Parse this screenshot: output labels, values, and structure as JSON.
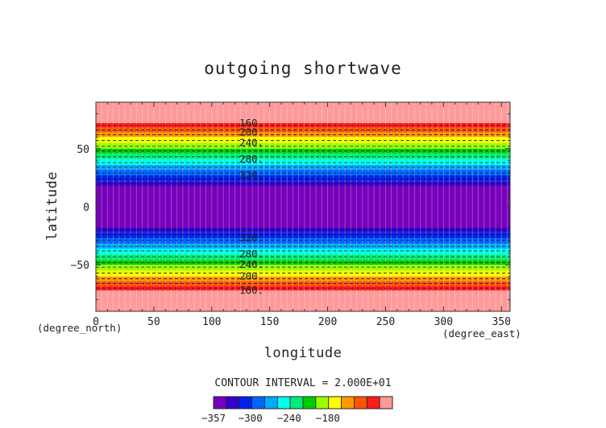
{
  "chart_data": {
    "type": "heatmap",
    "title": "outgoing shortwave",
    "xlabel": "longitude",
    "ylabel": "latitude",
    "x_unit": "(degree_east)",
    "y_unit": "(degree_north)",
    "xlim": [
      0,
      357.5
    ],
    "ylim": [
      -90,
      90
    ],
    "xticks": [
      0,
      50,
      100,
      150,
      200,
      250,
      300,
      350
    ],
    "yticks": [
      -50,
      0,
      50
    ],
    "xtick_labels": [
      "0",
      "50",
      "100",
      "150",
      "200",
      "250",
      "300",
      "350"
    ],
    "ytick_labels": [
      "−50",
      "0",
      "50"
    ],
    "contour_interval_text": "CONTOUR INTERVAL = 2.000E+01",
    "bands": [
      {
        "lat0": 72,
        "lat1": 90,
        "color": "#ff9a9a"
      },
      {
        "lat0": 68,
        "lat1": 72,
        "color": "#ff1a1a"
      },
      {
        "lat0": 64,
        "lat1": 68,
        "color": "#ff5500"
      },
      {
        "lat0": 60,
        "lat1": 64,
        "color": "#ff9900"
      },
      {
        "lat0": 55,
        "lat1": 60,
        "color": "#ffff00"
      },
      {
        "lat0": 50,
        "lat1": 55,
        "color": "#99ff00"
      },
      {
        "lat0": 46,
        "lat1": 50,
        "color": "#00cc00"
      },
      {
        "lat0": 41,
        "lat1": 46,
        "color": "#00ee77"
      },
      {
        "lat0": 36,
        "lat1": 41,
        "color": "#00ffee"
      },
      {
        "lat0": 32,
        "lat1": 36,
        "color": "#00aaff"
      },
      {
        "lat0": 27,
        "lat1": 32,
        "color": "#0066ff"
      },
      {
        "lat0": 22,
        "lat1": 27,
        "color": "#0022ee"
      },
      {
        "lat0": 18,
        "lat1": 22,
        "color": "#3300cc"
      },
      {
        "lat0": -18,
        "lat1": 18,
        "color": "#7700bb"
      },
      {
        "lat0": -22,
        "lat1": -18,
        "color": "#3300cc"
      },
      {
        "lat0": -27,
        "lat1": -22,
        "color": "#0022ee"
      },
      {
        "lat0": -32,
        "lat1": -27,
        "color": "#0066ff"
      },
      {
        "lat0": -36,
        "lat1": -32,
        "color": "#00aaff"
      },
      {
        "lat0": -41,
        "lat1": -36,
        "color": "#00ffee"
      },
      {
        "lat0": -46,
        "lat1": -41,
        "color": "#00ee77"
      },
      {
        "lat0": -50,
        "lat1": -46,
        "color": "#00cc00"
      },
      {
        "lat0": -55,
        "lat1": -50,
        "color": "#99ff00"
      },
      {
        "lat0": -60,
        "lat1": -55,
        "color": "#ffff00"
      },
      {
        "lat0": -64,
        "lat1": -60,
        "color": "#ff9900"
      },
      {
        "lat0": -68,
        "lat1": -64,
        "color": "#ff5500"
      },
      {
        "lat0": -72,
        "lat1": -68,
        "color": "#ff1a1a"
      },
      {
        "lat0": -90,
        "lat1": -72,
        "color": "#ff9a9a"
      }
    ],
    "contour_labels": [
      {
        "text": "160.",
        "lat": 72
      },
      {
        "text": "200.",
        "lat": 64
      },
      {
        "text": "240.",
        "lat": 55
      },
      {
        "text": "280.",
        "lat": 41
      },
      {
        "text": "320.",
        "lat": 27
      },
      {
        "text": "320.",
        "lat": -27
      },
      {
        "text": "280.",
        "lat": -41
      },
      {
        "text": "240.",
        "lat": -50
      },
      {
        "text": "200.",
        "lat": -60
      },
      {
        "text": "160.",
        "lat": -72
      }
    ],
    "dashed_lats": [
      70,
      66,
      62,
      57,
      52,
      48,
      43,
      38,
      34,
      29,
      24,
      20,
      -20,
      -24,
      -29,
      -34,
      -38,
      -43,
      -48,
      -52,
      -57,
      -62,
      -66,
      -70
    ],
    "colorbar": {
      "colors": [
        "#7700bb",
        "#3300cc",
        "#0022ee",
        "#0066ff",
        "#00aaff",
        "#00ffee",
        "#00ee77",
        "#00cc00",
        "#99ff00",
        "#ffff00",
        "#ff9900",
        "#ff5500",
        "#ff1a1a",
        "#ff9a9a"
      ],
      "tick_values": [
        -357,
        -300,
        -240,
        -180
      ],
      "tick_labels": [
        "−357",
        "−300",
        "−240",
        "−180"
      ],
      "vmin": -357,
      "vmax": -80
    }
  }
}
